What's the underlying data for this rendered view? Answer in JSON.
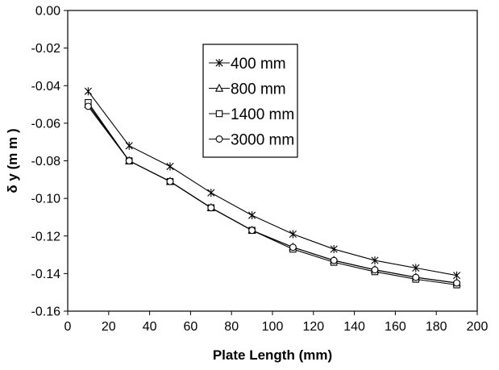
{
  "chart_data": {
    "type": "line",
    "title": "",
    "xlabel": "Plate Length (mm)",
    "ylabel": "δ y (m m )",
    "xlim": [
      0,
      200
    ],
    "ylim": [
      -0.16,
      0.0
    ],
    "xticks": [
      0,
      20,
      40,
      60,
      80,
      100,
      120,
      140,
      160,
      180,
      200
    ],
    "yticks": [
      0.0,
      -0.02,
      -0.04,
      -0.06,
      -0.08,
      -0.1,
      -0.12,
      -0.14,
      -0.16
    ],
    "xtick_labels": [
      "0",
      "20",
      "40",
      "60",
      "80",
      "100",
      "120",
      "140",
      "160",
      "180",
      "200"
    ],
    "ytick_labels": [
      "0.00",
      "-0.02",
      "-0.04",
      "-0.06",
      "-0.08",
      "-0.10",
      "-0.12",
      "-0.14",
      "-0.16"
    ],
    "grid": false,
    "legend_position": "upper-center",
    "x": [
      10,
      30,
      50,
      70,
      90,
      110,
      130,
      150,
      170,
      190
    ],
    "series": [
      {
        "name": "400 mm",
        "marker": "star",
        "values": [
          -0.043,
          -0.072,
          -0.083,
          -0.097,
          -0.109,
          -0.119,
          -0.127,
          -0.133,
          -0.137,
          -0.141
        ]
      },
      {
        "name": "800 mm",
        "marker": "triangle",
        "values": [
          -0.05,
          -0.08,
          -0.091,
          -0.105,
          -0.117,
          -0.126,
          -0.133,
          -0.138,
          -0.142,
          -0.145
        ]
      },
      {
        "name": "1400 mm",
        "marker": "square",
        "values": [
          -0.049,
          -0.08,
          -0.091,
          -0.105,
          -0.117,
          -0.127,
          -0.134,
          -0.139,
          -0.143,
          -0.146
        ]
      },
      {
        "name": "3000 mm",
        "marker": "circle",
        "values": [
          -0.051,
          -0.08,
          -0.091,
          -0.105,
          -0.117,
          -0.126,
          -0.133,
          -0.138,
          -0.142,
          -0.145
        ]
      }
    ]
  }
}
